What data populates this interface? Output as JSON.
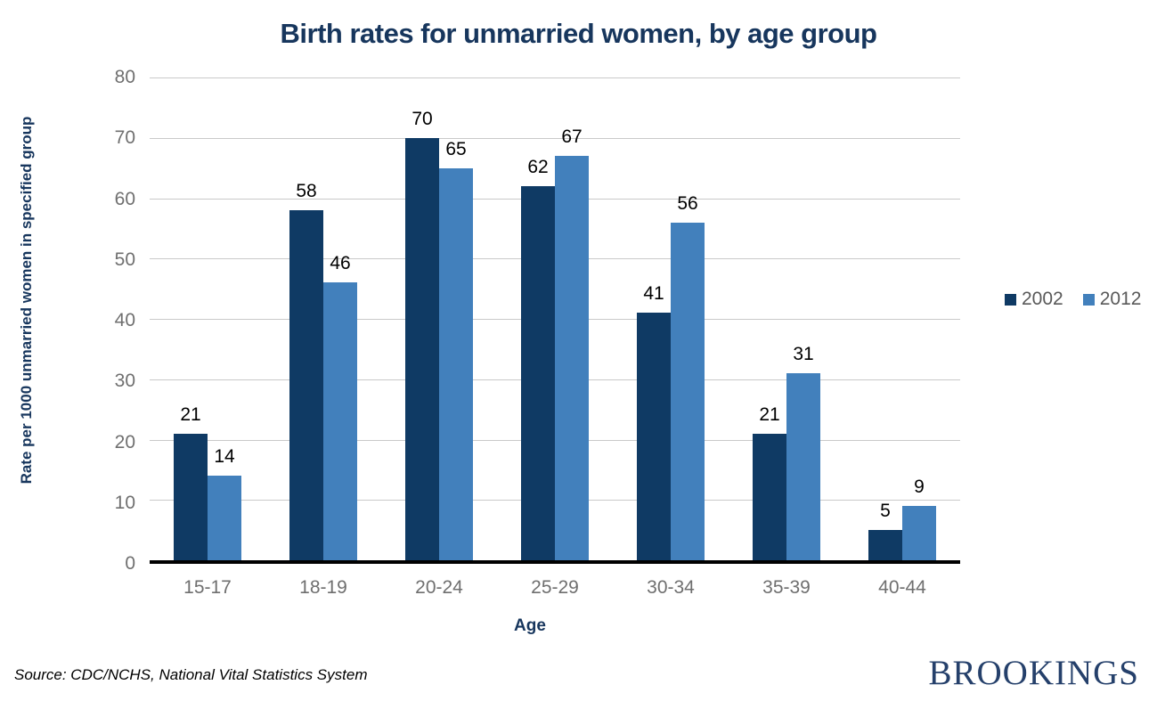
{
  "page": {
    "source_note": "Source: CDC/NCHS, National Vital Statistics System",
    "logo_text": "BROOKINGS"
  },
  "colors": {
    "title_navy": "#17365D",
    "tick_gray": "#6F6F6F",
    "legend_gray": "#595959",
    "gridline_gray": "#C9C9C9",
    "axis_black": "#000000",
    "logo_navy": "#25406B",
    "series_2002": "#0F3A64",
    "series_2012": "#4280BC"
  },
  "chart_data": {
    "type": "bar",
    "title": "Birth rates for unmarried women, by age group",
    "categories": [
      "15-17",
      "18-19",
      "20-24",
      "25-29",
      "30-34",
      "35-39",
      "40-44"
    ],
    "series": [
      {
        "name": "2002",
        "color": "#0F3A64",
        "values": [
          21,
          58,
          70,
          62,
          41,
          21,
          5
        ]
      },
      {
        "name": "2012",
        "color": "#4280BC",
        "values": [
          14,
          46,
          65,
          67,
          56,
          31,
          9
        ]
      }
    ],
    "xlabel": "Age",
    "ylabel": "Rate per 1000 unmarried women in specified group",
    "ylim": [
      0,
      80
    ],
    "ytick_step": 10,
    "grid": true,
    "data_labels": true,
    "legend_position": "right"
  }
}
